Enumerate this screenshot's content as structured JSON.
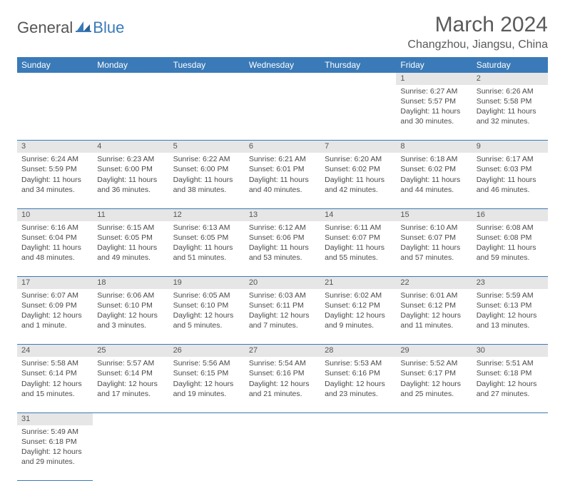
{
  "brand": {
    "part1": "General",
    "part2": "Blue"
  },
  "title": "March 2024",
  "location": "Changzhou, Jiangsu, China",
  "colors": {
    "header_bg": "#3a7ab8",
    "header_text": "#ffffff",
    "daynum_bg": "#e6e6e6",
    "row_border": "#3a7ab8",
    "body_text": "#4a4a4a",
    "page_bg": "#ffffff"
  },
  "weekdays": [
    "Sunday",
    "Monday",
    "Tuesday",
    "Wednesday",
    "Thursday",
    "Friday",
    "Saturday"
  ],
  "weeks": [
    {
      "nums": [
        "",
        "",
        "",
        "",
        "",
        "1",
        "2"
      ],
      "cells": [
        null,
        null,
        null,
        null,
        null,
        {
          "sr": "Sunrise: 6:27 AM",
          "ss": "Sunset: 5:57 PM",
          "d1": "Daylight: 11 hours",
          "d2": "and 30 minutes."
        },
        {
          "sr": "Sunrise: 6:26 AM",
          "ss": "Sunset: 5:58 PM",
          "d1": "Daylight: 11 hours",
          "d2": "and 32 minutes."
        }
      ]
    },
    {
      "nums": [
        "3",
        "4",
        "5",
        "6",
        "7",
        "8",
        "9"
      ],
      "cells": [
        {
          "sr": "Sunrise: 6:24 AM",
          "ss": "Sunset: 5:59 PM",
          "d1": "Daylight: 11 hours",
          "d2": "and 34 minutes."
        },
        {
          "sr": "Sunrise: 6:23 AM",
          "ss": "Sunset: 6:00 PM",
          "d1": "Daylight: 11 hours",
          "d2": "and 36 minutes."
        },
        {
          "sr": "Sunrise: 6:22 AM",
          "ss": "Sunset: 6:00 PM",
          "d1": "Daylight: 11 hours",
          "d2": "and 38 minutes."
        },
        {
          "sr": "Sunrise: 6:21 AM",
          "ss": "Sunset: 6:01 PM",
          "d1": "Daylight: 11 hours",
          "d2": "and 40 minutes."
        },
        {
          "sr": "Sunrise: 6:20 AM",
          "ss": "Sunset: 6:02 PM",
          "d1": "Daylight: 11 hours",
          "d2": "and 42 minutes."
        },
        {
          "sr": "Sunrise: 6:18 AM",
          "ss": "Sunset: 6:02 PM",
          "d1": "Daylight: 11 hours",
          "d2": "and 44 minutes."
        },
        {
          "sr": "Sunrise: 6:17 AM",
          "ss": "Sunset: 6:03 PM",
          "d1": "Daylight: 11 hours",
          "d2": "and 46 minutes."
        }
      ]
    },
    {
      "nums": [
        "10",
        "11",
        "12",
        "13",
        "14",
        "15",
        "16"
      ],
      "cells": [
        {
          "sr": "Sunrise: 6:16 AM",
          "ss": "Sunset: 6:04 PM",
          "d1": "Daylight: 11 hours",
          "d2": "and 48 minutes."
        },
        {
          "sr": "Sunrise: 6:15 AM",
          "ss": "Sunset: 6:05 PM",
          "d1": "Daylight: 11 hours",
          "d2": "and 49 minutes."
        },
        {
          "sr": "Sunrise: 6:13 AM",
          "ss": "Sunset: 6:05 PM",
          "d1": "Daylight: 11 hours",
          "d2": "and 51 minutes."
        },
        {
          "sr": "Sunrise: 6:12 AM",
          "ss": "Sunset: 6:06 PM",
          "d1": "Daylight: 11 hours",
          "d2": "and 53 minutes."
        },
        {
          "sr": "Sunrise: 6:11 AM",
          "ss": "Sunset: 6:07 PM",
          "d1": "Daylight: 11 hours",
          "d2": "and 55 minutes."
        },
        {
          "sr": "Sunrise: 6:10 AM",
          "ss": "Sunset: 6:07 PM",
          "d1": "Daylight: 11 hours",
          "d2": "and 57 minutes."
        },
        {
          "sr": "Sunrise: 6:08 AM",
          "ss": "Sunset: 6:08 PM",
          "d1": "Daylight: 11 hours",
          "d2": "and 59 minutes."
        }
      ]
    },
    {
      "nums": [
        "17",
        "18",
        "19",
        "20",
        "21",
        "22",
        "23"
      ],
      "cells": [
        {
          "sr": "Sunrise: 6:07 AM",
          "ss": "Sunset: 6:09 PM",
          "d1": "Daylight: 12 hours",
          "d2": "and 1 minute."
        },
        {
          "sr": "Sunrise: 6:06 AM",
          "ss": "Sunset: 6:10 PM",
          "d1": "Daylight: 12 hours",
          "d2": "and 3 minutes."
        },
        {
          "sr": "Sunrise: 6:05 AM",
          "ss": "Sunset: 6:10 PM",
          "d1": "Daylight: 12 hours",
          "d2": "and 5 minutes."
        },
        {
          "sr": "Sunrise: 6:03 AM",
          "ss": "Sunset: 6:11 PM",
          "d1": "Daylight: 12 hours",
          "d2": "and 7 minutes."
        },
        {
          "sr": "Sunrise: 6:02 AM",
          "ss": "Sunset: 6:12 PM",
          "d1": "Daylight: 12 hours",
          "d2": "and 9 minutes."
        },
        {
          "sr": "Sunrise: 6:01 AM",
          "ss": "Sunset: 6:12 PM",
          "d1": "Daylight: 12 hours",
          "d2": "and 11 minutes."
        },
        {
          "sr": "Sunrise: 5:59 AM",
          "ss": "Sunset: 6:13 PM",
          "d1": "Daylight: 12 hours",
          "d2": "and 13 minutes."
        }
      ]
    },
    {
      "nums": [
        "24",
        "25",
        "26",
        "27",
        "28",
        "29",
        "30"
      ],
      "cells": [
        {
          "sr": "Sunrise: 5:58 AM",
          "ss": "Sunset: 6:14 PM",
          "d1": "Daylight: 12 hours",
          "d2": "and 15 minutes."
        },
        {
          "sr": "Sunrise: 5:57 AM",
          "ss": "Sunset: 6:14 PM",
          "d1": "Daylight: 12 hours",
          "d2": "and 17 minutes."
        },
        {
          "sr": "Sunrise: 5:56 AM",
          "ss": "Sunset: 6:15 PM",
          "d1": "Daylight: 12 hours",
          "d2": "and 19 minutes."
        },
        {
          "sr": "Sunrise: 5:54 AM",
          "ss": "Sunset: 6:16 PM",
          "d1": "Daylight: 12 hours",
          "d2": "and 21 minutes."
        },
        {
          "sr": "Sunrise: 5:53 AM",
          "ss": "Sunset: 6:16 PM",
          "d1": "Daylight: 12 hours",
          "d2": "and 23 minutes."
        },
        {
          "sr": "Sunrise: 5:52 AM",
          "ss": "Sunset: 6:17 PM",
          "d1": "Daylight: 12 hours",
          "d2": "and 25 minutes."
        },
        {
          "sr": "Sunrise: 5:51 AM",
          "ss": "Sunset: 6:18 PM",
          "d1": "Daylight: 12 hours",
          "d2": "and 27 minutes."
        }
      ]
    },
    {
      "nums": [
        "31",
        "",
        "",
        "",
        "",
        "",
        ""
      ],
      "cells": [
        {
          "sr": "Sunrise: 5:49 AM",
          "ss": "Sunset: 6:18 PM",
          "d1": "Daylight: 12 hours",
          "d2": "and 29 minutes."
        },
        null,
        null,
        null,
        null,
        null,
        null
      ]
    }
  ]
}
